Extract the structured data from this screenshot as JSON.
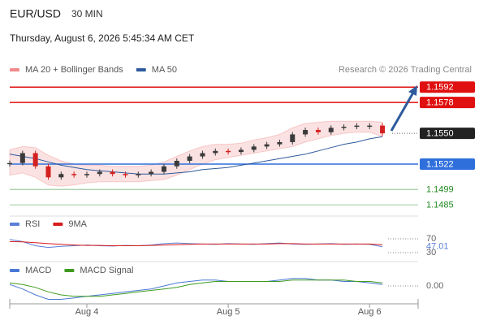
{
  "header": {
    "symbol": "EUR/USD",
    "interval": "30 MIN",
    "datetime": "Thursday, August 6, 2026 5:45:34 AM CET",
    "source": "Research © 2026 Trading Central"
  },
  "chart_data": [
    {
      "type": "candlestick",
      "categories": [
        null,
        null,
        null,
        null,
        null,
        null,
        "Aug 4",
        null,
        null,
        null,
        null,
        null,
        null,
        null,
        null,
        null,
        null,
        "Aug 5",
        null,
        null,
        null,
        null,
        null,
        null,
        null,
        null,
        null,
        null,
        "Aug 6",
        null
      ],
      "values": [
        1.1523,
        1.1532,
        1.152,
        1.151,
        1.1513,
        1.1512,
        1.1513,
        1.1515,
        1.1513,
        1.1512,
        1.1513,
        1.1515,
        1.152,
        1.1525,
        1.1529,
        1.1532,
        1.1534,
        1.1533,
        1.1535,
        1.1538,
        1.154,
        1.1542,
        1.1549,
        1.1553,
        1.1551,
        1.1555,
        1.1556,
        1.1557,
        1.1557,
        1.155
      ],
      "up_color": "#3a3a3a",
      "down_color": "#d32020",
      "series": [
        {
          "name": "MA 20 + Bollinger Bands",
          "color": "#f08a8a",
          "upper": [
            1.1535,
            1.1538,
            1.1537,
            1.153,
            1.1525,
            1.1522,
            1.1521,
            1.1521,
            1.152,
            1.152,
            1.152,
            1.1521,
            1.1524,
            1.1529,
            1.1534,
            1.1538,
            1.154,
            1.154,
            1.1541,
            1.1544,
            1.1546,
            1.1549,
            1.1555,
            1.1559,
            1.156,
            1.1561,
            1.1561,
            1.1561,
            1.1561,
            1.156
          ],
          "lower": [
            1.1512,
            1.1514,
            1.151,
            1.1503,
            1.1502,
            1.1503,
            1.1505,
            1.1506,
            1.1506,
            1.1506,
            1.1506,
            1.1507,
            1.1508,
            1.1512,
            1.1517,
            1.1522,
            1.1526,
            1.1528,
            1.153,
            1.1532,
            1.1534,
            1.1536,
            1.1538,
            1.1542,
            1.1545,
            1.1548,
            1.155,
            1.1551,
            1.1551,
            1.1547
          ]
        },
        {
          "name": "MA 50",
          "color": "#2e5a9c",
          "values": [
            1.1531,
            1.1529,
            1.1527,
            1.1524,
            1.1521,
            1.1519,
            1.1517,
            1.1516,
            1.1515,
            1.1514,
            1.1513,
            1.1513,
            1.1513,
            1.1514,
            1.1515,
            1.1517,
            1.1518,
            1.1519,
            1.1521,
            1.1523,
            1.1525,
            1.1527,
            1.1529,
            1.1531,
            1.1534,
            1.1537,
            1.154,
            1.1542,
            1.1545,
            1.1547
          ]
        }
      ],
      "ylim": [
        1.1477,
        1.1601
      ],
      "levels": [
        {
          "value": 1.1592,
          "label": "1.1592",
          "color": "#e01010",
          "boxed": true,
          "line": "solid"
        },
        {
          "value": 1.1578,
          "label": "1.1578",
          "color": "#e01010",
          "boxed": true,
          "line": "solid"
        },
        {
          "value": 1.155,
          "label": "1.1550",
          "color": "#222222",
          "boxed": true,
          "line": "dotted"
        },
        {
          "value": 1.1522,
          "label": "1.1522",
          "color": "#2f6fdc",
          "boxed": true,
          "line": "solid"
        },
        {
          "value": 1.1499,
          "label": "1.1499",
          "color": "#1f8a1f",
          "boxed": false,
          "line": "solid"
        },
        {
          "value": 1.1485,
          "label": "1.1485",
          "color": "#1f8a1f",
          "boxed": false,
          "line": "solid"
        }
      ]
    },
    {
      "type": "line",
      "series": [
        {
          "name": "RSI",
          "color": "#5b7fd6",
          "values": [
            68,
            62,
            50,
            45,
            48,
            50,
            52,
            50,
            49,
            51,
            50,
            52,
            56,
            58,
            56,
            55,
            54,
            56,
            55,
            54,
            56,
            58,
            55,
            54,
            55,
            56,
            54,
            55,
            54,
            47.01
          ]
        },
        {
          "name": "9MA",
          "color": "#d91c1c",
          "values": [
            62,
            61,
            59,
            56,
            54,
            52,
            51,
            51,
            50,
            50,
            50,
            51,
            52,
            53,
            54,
            55,
            55,
            55,
            55,
            55,
            55,
            56,
            56,
            55,
            55,
            55,
            55,
            55,
            55,
            53
          ]
        }
      ],
      "ylim": [
        23,
        84
      ],
      "yticks": [
        70,
        30
      ]
    },
    {
      "type": "line",
      "series": [
        {
          "name": "MACD",
          "color": "#4a78d4",
          "values": [
            0.0001,
            -0.0002,
            -0.0006,
            -0.0009,
            -0.0009,
            -0.0008,
            -0.0007,
            -0.0006,
            -0.0005,
            -0.0004,
            -0.0003,
            -0.0002,
            0.0,
            0.0002,
            0.0003,
            0.0004,
            0.0004,
            0.0003,
            0.0003,
            0.0003,
            0.0003,
            0.0004,
            0.0005,
            0.0005,
            0.0004,
            0.0004,
            0.0003,
            0.0003,
            0.0002,
            0.0001
          ]
        },
        {
          "name": "MACD Signal",
          "color": "#3f9a1f",
          "values": [
            0.0002,
            0.0001,
            -0.0001,
            -0.0004,
            -0.0006,
            -0.0007,
            -0.0007,
            -0.0007,
            -0.0006,
            -0.0005,
            -0.0004,
            -0.0003,
            -0.0002,
            -0.0001,
            0.0001,
            0.0002,
            0.0003,
            0.0003,
            0.0003,
            0.0003,
            0.0003,
            0.0003,
            0.0004,
            0.0004,
            0.0004,
            0.0004,
            0.0004,
            0.0003,
            0.0003,
            0.0002
          ]
        }
      ],
      "ylim": [
        -0.0012,
        0.0012
      ],
      "yticks": [
        {
          "value": 0,
          "label": "0.00"
        }
      ]
    }
  ]
}
